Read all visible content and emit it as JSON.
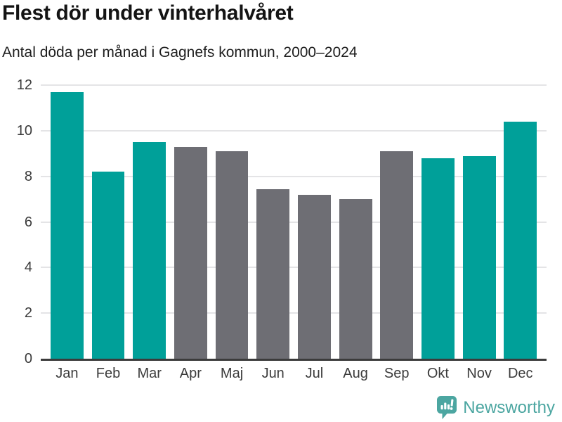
{
  "header": {
    "title": "Flest dör under vinterhalvåret",
    "subtitle": "Antal döda per månad i Gagnefs kommun, 2000–2024"
  },
  "chart_data": {
    "type": "bar",
    "title": "Flest dör under vinterhalvåret",
    "subtitle": "Antal döda per månad i Gagnefs kommun, 2000–2024",
    "categories": [
      "Jan",
      "Feb",
      "Mar",
      "Apr",
      "Maj",
      "Jun",
      "Jul",
      "Aug",
      "Sep",
      "Okt",
      "Nov",
      "Dec"
    ],
    "values": [
      11.7,
      8.2,
      9.5,
      9.3,
      9.1,
      7.45,
      7.2,
      7.0,
      9.1,
      8.8,
      8.9,
      10.4
    ],
    "highlighted": [
      true,
      true,
      true,
      false,
      false,
      false,
      false,
      false,
      false,
      true,
      true,
      true
    ],
    "xlabel": "",
    "ylabel": "",
    "ylim": [
      0,
      12
    ],
    "yticks": [
      0,
      2,
      4,
      6,
      8,
      10,
      12
    ],
    "grid": true,
    "legend": false,
    "colors": {
      "highlight": "#00a099",
      "muted": "#6e6e74",
      "gridline": "#e4e4e6",
      "axis": "#3b3b3b"
    }
  },
  "footer": {
    "brand": "Newsworthy",
    "logo_icon": "bar-chart-speech-bubble-icon",
    "brand_color": "#4ca6a1"
  }
}
